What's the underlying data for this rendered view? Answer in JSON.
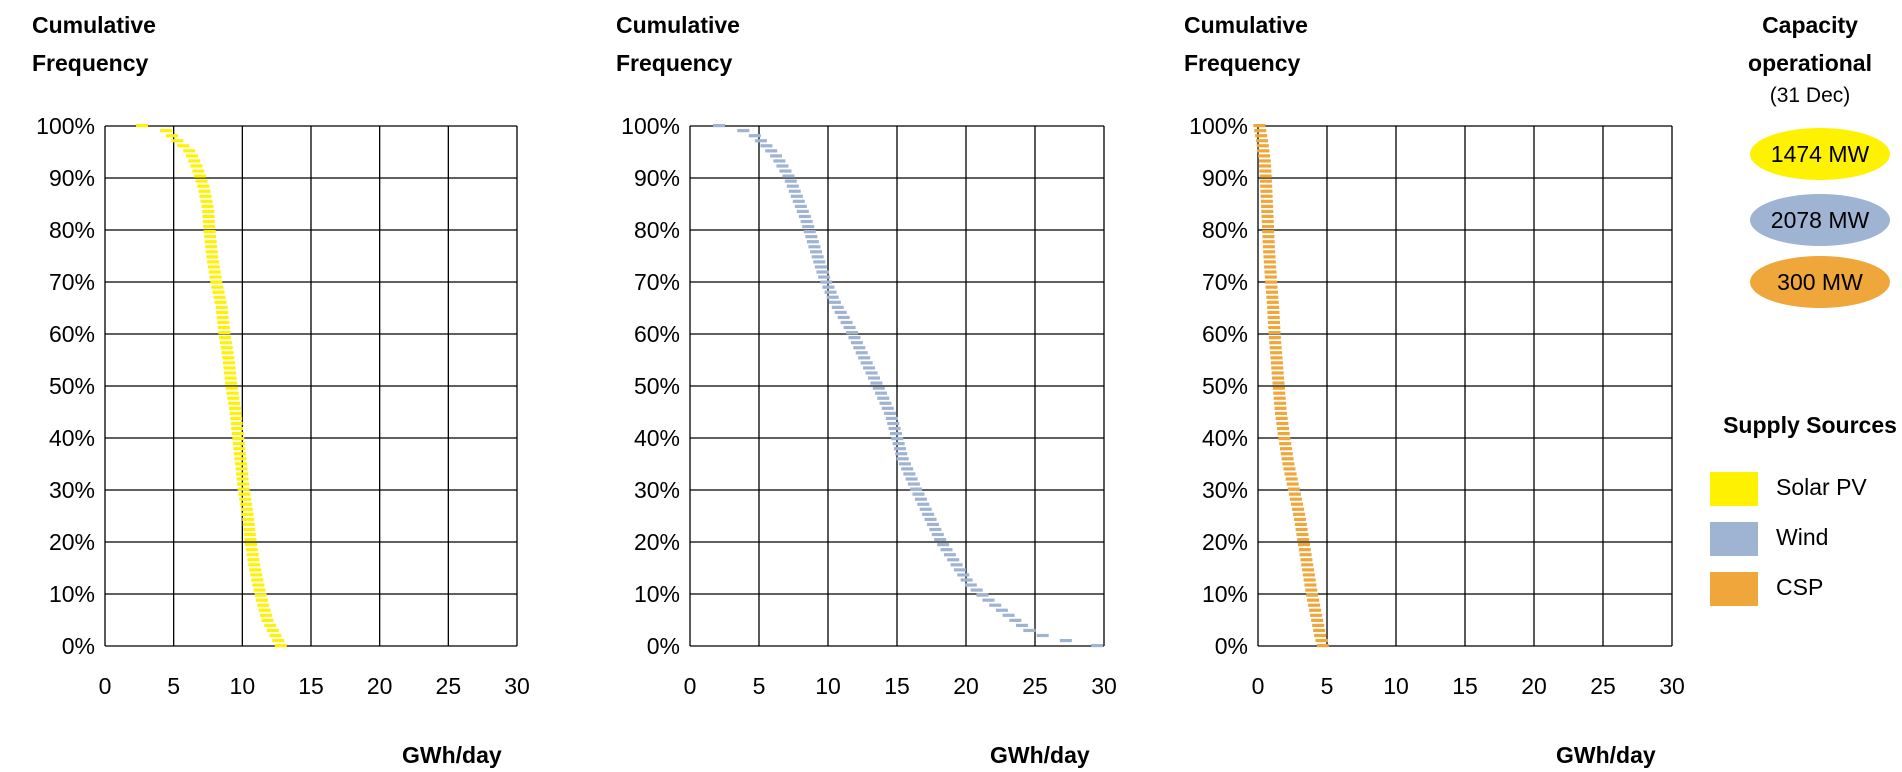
{
  "colors": {
    "solar": "#FFF200",
    "wind": "#9FB3D2",
    "csp": "#EFA63A",
    "grid": "#000000"
  },
  "side_panel": {
    "capacity_title": "Capacity operational",
    "capacity_date": "(31 Dec)",
    "capacities": [
      {
        "label": "1474 MW",
        "color": "#FFF200"
      },
      {
        "label": "2078 MW",
        "color": "#9FB3D2"
      },
      {
        "label": "300 MW",
        "color": "#EFA63A"
      }
    ],
    "legend_title": "Supply Sources",
    "legend": [
      {
        "label": "Solar PV",
        "color": "#FFF200"
      },
      {
        "label": "Wind",
        "color": "#9FB3D2"
      },
      {
        "label": "CSP",
        "color": "#EFA63A"
      }
    ]
  },
  "chart_data": [
    {
      "type": "scatter",
      "series_name": "Solar PV",
      "color": "#FFF200",
      "ylabel": "Cumulative Frequency",
      "xlabel": "GWh/day",
      "xlim": [
        0,
        30
      ],
      "ylim": [
        0,
        100
      ],
      "xticks": [
        "0",
        "5",
        "10",
        "15",
        "20",
        "25",
        "30"
      ],
      "yticks": [
        "0%",
        "10%",
        "20%",
        "30%",
        "40%",
        "50%",
        "60%",
        "70%",
        "80%",
        "90%",
        "100%"
      ],
      "grid": true,
      "curve": [
        [
          2.7,
          100
        ],
        [
          4.5,
          99
        ],
        [
          5.3,
          97
        ],
        [
          6.2,
          95
        ],
        [
          6.7,
          92
        ],
        [
          7.2,
          88
        ],
        [
          7.5,
          84
        ],
        [
          7.6,
          80
        ],
        [
          7.8,
          75
        ],
        [
          8.1,
          70
        ],
        [
          8.5,
          65
        ],
        [
          8.7,
          60
        ],
        [
          9.0,
          55
        ],
        [
          9.2,
          50
        ],
        [
          9.5,
          45
        ],
        [
          9.7,
          40
        ],
        [
          9.9,
          35
        ],
        [
          10.1,
          30
        ],
        [
          10.4,
          25
        ],
        [
          10.6,
          20
        ],
        [
          10.9,
          15
        ],
        [
          11.3,
          10
        ],
        [
          11.8,
          5
        ],
        [
          12.4,
          2
        ],
        [
          12.8,
          0
        ]
      ]
    },
    {
      "type": "scatter",
      "series_name": "Wind",
      "color": "#9FB3D2",
      "ylabel": "Cumulative Frequency",
      "xlabel": "GWh/day",
      "xlim": [
        0,
        30
      ],
      "ylim": [
        0,
        100
      ],
      "xticks": [
        "0",
        "5",
        "10",
        "15",
        "20",
        "25",
        "30"
      ],
      "yticks": [
        "0%",
        "10%",
        "20%",
        "30%",
        "40%",
        "50%",
        "60%",
        "70%",
        "80%",
        "90%",
        "100%"
      ],
      "grid": true,
      "curve": [
        [
          2.1,
          100
        ],
        [
          3.3,
          99.5
        ],
        [
          4.5,
          98.5
        ],
        [
          5.4,
          96.5
        ],
        [
          6.3,
          94
        ],
        [
          7.2,
          90
        ],
        [
          7.8,
          86
        ],
        [
          8.4,
          82
        ],
        [
          9.1,
          76
        ],
        [
          9.7,
          71
        ],
        [
          10.5,
          66
        ],
        [
          11.6,
          61
        ],
        [
          12.5,
          56
        ],
        [
          13.6,
          50
        ],
        [
          14.6,
          44
        ],
        [
          15.0,
          40
        ],
        [
          15.4,
          36
        ],
        [
          16.4,
          30
        ],
        [
          17.3,
          25
        ],
        [
          18.2,
          20
        ],
        [
          19.2,
          16
        ],
        [
          20.2,
          12
        ],
        [
          21.5,
          9
        ],
        [
          23.0,
          6
        ],
        [
          24.5,
          3
        ],
        [
          26.0,
          1.5
        ],
        [
          29.5,
          0
        ]
      ]
    },
    {
      "type": "scatter",
      "series_name": "CSP",
      "color": "#EFA63A",
      "ylabel": "Cumulative Frequency",
      "xlabel": "GWh/day",
      "xlim": [
        0,
        30
      ],
      "ylim": [
        0,
        100
      ],
      "xticks": [
        "0",
        "5",
        "10",
        "15",
        "20",
        "25",
        "30"
      ],
      "yticks": [
        "0%",
        "10%",
        "20%",
        "30%",
        "40%",
        "50%",
        "60%",
        "70%",
        "80%",
        "90%",
        "100%"
      ],
      "grid": true,
      "curve": [
        [
          0.1,
          100
        ],
        [
          0.3,
          97
        ],
        [
          0.5,
          93
        ],
        [
          0.6,
          88
        ],
        [
          0.7,
          82
        ],
        [
          0.8,
          76
        ],
        [
          0.95,
          70
        ],
        [
          1.1,
          65
        ],
        [
          1.2,
          60
        ],
        [
          1.35,
          55
        ],
        [
          1.5,
          50
        ],
        [
          1.65,
          45
        ],
        [
          1.9,
          40
        ],
        [
          2.2,
          35
        ],
        [
          2.6,
          30
        ],
        [
          3.0,
          25
        ],
        [
          3.3,
          20
        ],
        [
          3.6,
          15
        ],
        [
          3.9,
          10
        ],
        [
          4.2,
          6
        ],
        [
          4.5,
          2
        ],
        [
          4.7,
          0
        ]
      ]
    }
  ]
}
